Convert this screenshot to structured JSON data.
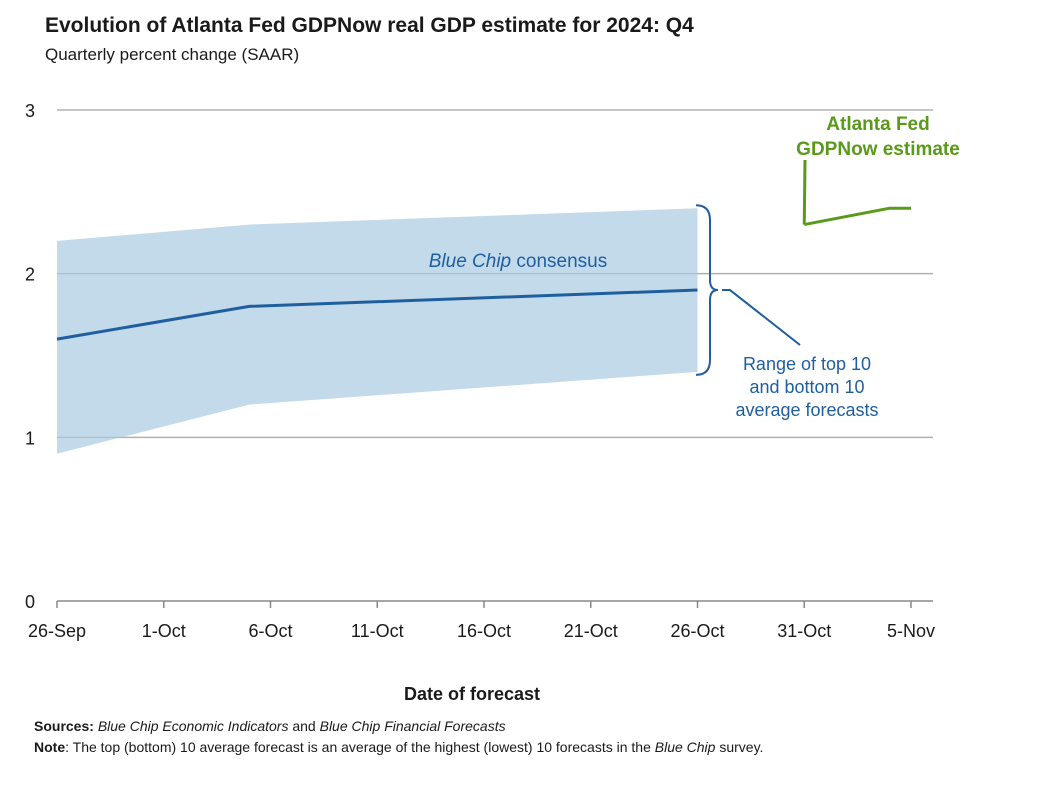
{
  "header": {
    "title": "Evolution of Atlanta Fed GDPNow real GDP estimate for 2024: Q4",
    "subtitle": "Quarterly percent change (SAAR)"
  },
  "chart_data": {
    "type": "line",
    "title": "Evolution of Atlanta Fed GDPNow real GDP estimate for 2024: Q4",
    "subtitle": "Quarterly percent change (SAAR)",
    "xlabel": "Date of forecast",
    "ylabel": "",
    "ylim": [
      0,
      3
    ],
    "yticks": [
      0,
      1,
      2,
      3
    ],
    "xlim": [
      "26-Sep",
      "7-Nov"
    ],
    "xtick_labels": [
      "26-Sep",
      "1-Oct",
      "6-Oct",
      "11-Oct",
      "16-Oct",
      "21-Oct",
      "26-Oct",
      "31-Oct",
      "5-Nov"
    ],
    "grid": true,
    "x_day_offsets_from_26_Sep": {
      "note": "x values are days after 26-Sep"
    },
    "series": [
      {
        "name": "Blue Chip consensus",
        "kind": "line",
        "color": "#1f5fa0",
        "points": [
          [
            0,
            1.6
          ],
          [
            9,
            1.8
          ],
          [
            30,
            1.9
          ]
        ]
      },
      {
        "name": "Range of top 10 and bottom 10 average forecasts",
        "kind": "band",
        "color": "#bcd6e8",
        "upper": [
          [
            0,
            2.2
          ],
          [
            9,
            2.3
          ],
          [
            30,
            2.4
          ]
        ],
        "lower": [
          [
            0,
            0.9
          ],
          [
            9,
            1.2
          ],
          [
            30,
            1.4
          ]
        ]
      },
      {
        "name": "Atlanta Fed GDPNow estimate",
        "kind": "line",
        "color": "#5a9a1a",
        "points": [
          [
            35,
            2.3
          ],
          [
            39,
            2.4
          ],
          [
            40,
            2.4
          ]
        ]
      }
    ],
    "annotations": {
      "consensus_label_italic": "Blue Chip",
      "consensus_label_rest": " consensus",
      "range_label": [
        "Range of top 10",
        "and bottom 10",
        "average forecasts"
      ],
      "gdpnow_label": [
        "Atlanta Fed",
        "GDPNow estimate"
      ]
    },
    "colors": {
      "grid": "#b8b8b8",
      "axis": "#888888",
      "tick_text": "#1a1a1a"
    }
  },
  "footer": {
    "sources_label": "Sources:",
    "sources_italic_1": "Blue Chip Economic Indicators",
    "sources_and": " and ",
    "sources_italic_2": "Blue Chip Financial Forecasts",
    "note_label": "Note",
    "note_text_1": ": The top (bottom) 10 average forecast is an average of the highest (lowest) 10 forecasts in the ",
    "note_italic": "Blue Chip",
    "note_text_2": " survey."
  }
}
